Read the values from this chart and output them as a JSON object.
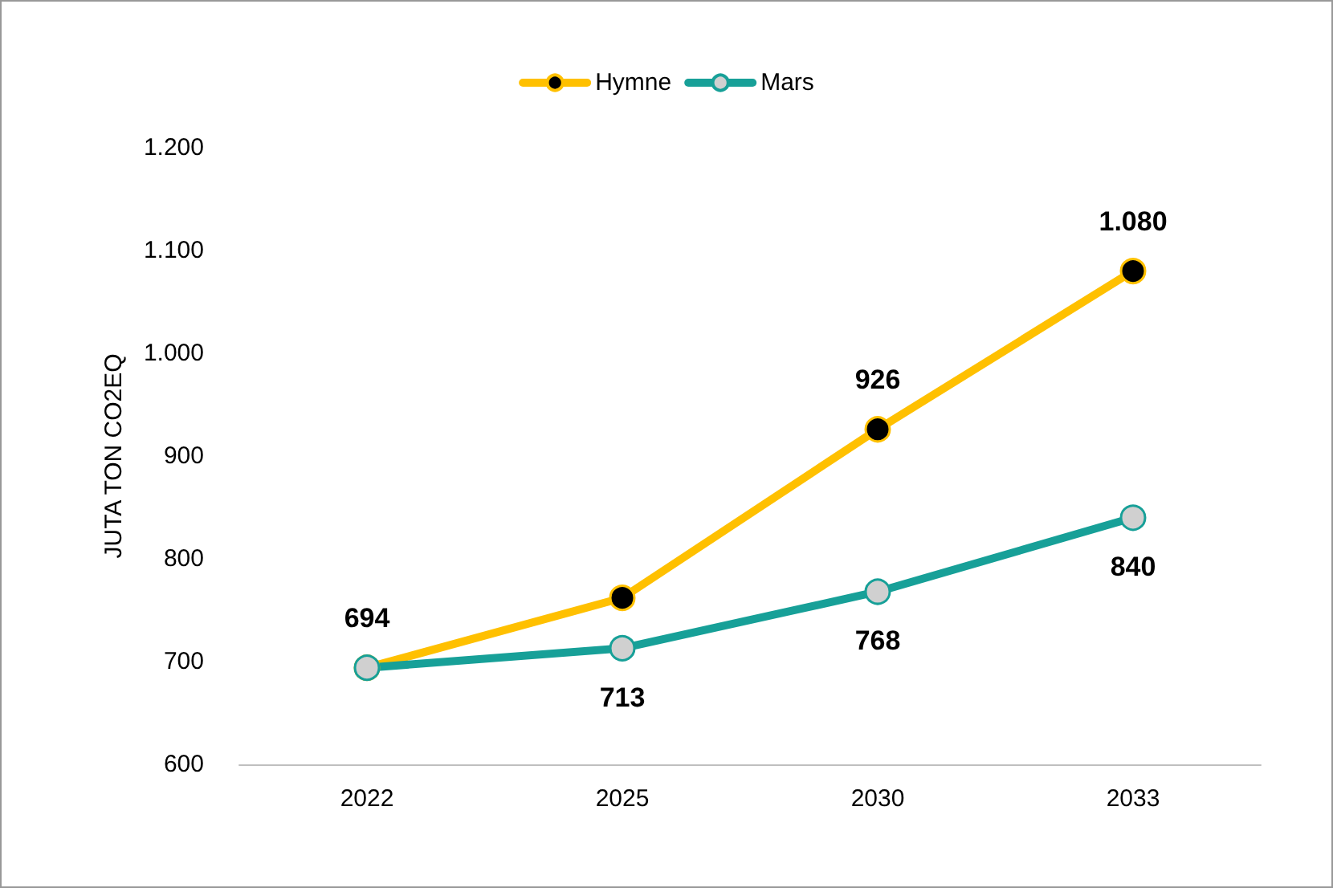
{
  "chart_data": {
    "type": "line",
    "ylabel": "JUTA TON CO2EQ",
    "categories": [
      "2022",
      "2025",
      "2030",
      "2033"
    ],
    "series": [
      {
        "name": "Hymne",
        "color": "#ffc000",
        "values": [
          694,
          762,
          926,
          1080
        ],
        "value_labels": [
          "694",
          null,
          "926",
          "1.080"
        ]
      },
      {
        "name": "Mars",
        "color": "#17a098",
        "values": [
          694,
          713,
          768,
          840
        ],
        "value_labels": [
          null,
          "713",
          "768",
          "840"
        ]
      }
    ],
    "ylim": [
      600,
      1200
    ],
    "yticks": [
      600,
      700,
      800,
      900,
      {
        "value": 1000,
        "label": "1.000"
      },
      {
        "value": 1100,
        "label": "1.100"
      },
      {
        "value": 1200,
        "label": "1.200"
      }
    ],
    "grid": false,
    "legend": "top",
    "marker": "circle",
    "line_style": "solid"
  }
}
